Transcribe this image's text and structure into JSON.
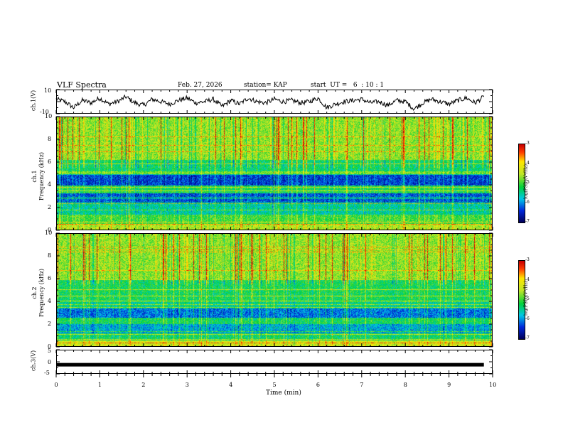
{
  "header": {
    "title": "VLF Spectra",
    "date": "Feb. 27, 2026",
    "station": "station= KAP",
    "start": "start  UT =   6  : 10 : 1"
  },
  "colors": {
    "background": "#ffffff",
    "axis": "#000000"
  },
  "chart_data": [
    {
      "type": "line",
      "id": "ch1-waveform",
      "ylabel": "ch.1(V)",
      "ylim": [
        -10,
        10
      ],
      "y_ticks": [
        "10",
        "-10"
      ],
      "xlim": [
        0,
        10
      ],
      "x": [
        0,
        0.2,
        0.4,
        0.6,
        0.8,
        1.0,
        1.2,
        1.4,
        1.6,
        1.8,
        2.0,
        2.2,
        2.4,
        2.6,
        2.8,
        3.0,
        3.2,
        3.4,
        3.6,
        3.8,
        4.0,
        4.2,
        4.4,
        4.6,
        4.8,
        5.0,
        5.2,
        5.4,
        5.6,
        5.8,
        6.0,
        6.2,
        6.4,
        6.6,
        6.8,
        7.0,
        7.2,
        7.4,
        7.6,
        7.8,
        8.0,
        8.2,
        8.4,
        8.6,
        8.8,
        9.0,
        9.2,
        9.4,
        9.6,
        9.8
      ],
      "values": [
        2,
        0,
        -5,
        1,
        -1,
        3,
        -2,
        0,
        4,
        -1,
        -3,
        2,
        0,
        -2,
        1,
        3,
        -1,
        0,
        2,
        -4,
        1,
        -2,
        3,
        0,
        -1,
        2,
        0,
        1,
        -1,
        0,
        3,
        -5,
        -2,
        0,
        1,
        2,
        -1,
        0,
        -3,
        1,
        0,
        -6,
        -1,
        2,
        0,
        -2,
        1,
        3,
        -1,
        4
      ]
    },
    {
      "type": "heatmap",
      "id": "ch1-spectrogram",
      "ylabel": "ch.1\nFrequency  (kHz)",
      "ylim": [
        0,
        10
      ],
      "y_ticks": [
        "0",
        "2",
        "4",
        "6",
        "8",
        "10"
      ],
      "xlim": [
        0,
        10
      ],
      "colorbar": {
        "label": "log(PSD)(V²/Hz)",
        "range": [
          -7,
          -3
        ],
        "ticks": [
          "-3",
          "-4",
          "-5",
          "-6",
          "-7"
        ]
      }
    },
    {
      "type": "heatmap",
      "id": "ch2-spectrogram",
      "ylabel": "ch.2\nFrequency  (kHz)",
      "ylim": [
        0,
        10
      ],
      "y_ticks": [
        "0",
        "2",
        "4",
        "6",
        "8",
        "10"
      ],
      "xlim": [
        0,
        10
      ],
      "colorbar": {
        "label": "log(PSD)(V²/Hz)",
        "range": [
          -7,
          -3
        ],
        "ticks": [
          "-3",
          "-4",
          "-5",
          "-6",
          "-7"
        ]
      }
    },
    {
      "type": "line",
      "id": "ch3-waveform",
      "ylabel": "ch.3(V)",
      "ylim": [
        -5,
        5
      ],
      "y_ticks": [
        "5",
        "0",
        "-5"
      ],
      "xlim": [
        0,
        10
      ],
      "x": [
        0,
        9.8
      ],
      "values": [
        -1.2,
        -1.2
      ]
    }
  ],
  "x_axis": {
    "label": "Time  (min)",
    "ticks": [
      "0",
      "1",
      "2",
      "3",
      "4",
      "5",
      "6",
      "7",
      "8",
      "9",
      "10"
    ]
  }
}
